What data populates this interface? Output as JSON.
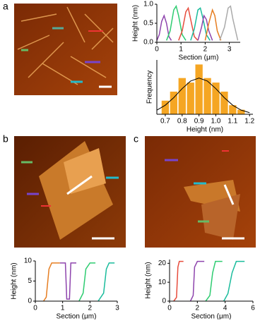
{
  "panels": [
    "a",
    "b",
    "c"
  ],
  "chart_data": [
    {
      "type": "line",
      "xlabel": "Section (μm)",
      "ylabel": "Height (nm)",
      "xlim": [
        0,
        3.45
      ],
      "xticks": [
        0,
        1,
        2,
        3
      ],
      "ylim": [
        0,
        1
      ],
      "yticks": [
        {
          "value": 0,
          "label": "0.0"
        },
        0.5,
        {
          "value": 1,
          "label": "1.0"
        }
      ],
      "series": [
        {
          "color": "#8e44ad",
          "x": [
            0,
            0.1,
            0.2,
            0.3,
            0.4,
            0.5,
            0.6
          ],
          "values": [
            0.05,
            0.2,
            0.55,
            0.7,
            0.5,
            0.15,
            0.05
          ]
        },
        {
          "color": "#2ecc71",
          "x": [
            0.4,
            0.55,
            0.7,
            0.8,
            0.9,
            1.05,
            1.2
          ],
          "values": [
            0.05,
            0.3,
            0.85,
            0.95,
            0.7,
            0.2,
            0.05
          ]
        },
        {
          "color": "#e74c3c",
          "x": [
            0.9,
            1.05,
            1.2,
            1.3,
            1.4,
            1.55,
            1.7
          ],
          "values": [
            0.05,
            0.3,
            0.8,
            0.9,
            0.6,
            0.15,
            0.05
          ]
        },
        {
          "color": "#1abc9c",
          "x": [
            1.4,
            1.55,
            1.7,
            1.8,
            1.9,
            2.05,
            2.2
          ],
          "values": [
            0.05,
            0.35,
            0.85,
            0.9,
            0.65,
            0.2,
            0.05
          ]
        },
        {
          "color": "#8e44ad",
          "x": [
            1.7,
            1.85,
            1.95,
            2.05,
            2.15,
            2.3
          ],
          "values": [
            0.05,
            0.4,
            0.7,
            0.6,
            0.3,
            0.05
          ]
        },
        {
          "color": "#e67e22",
          "x": [
            2.0,
            2.15,
            2.3,
            2.4,
            2.5,
            2.65
          ],
          "values": [
            0.05,
            0.5,
            0.85,
            0.7,
            0.3,
            0.05
          ]
        },
        {
          "color": "#aaaaaa",
          "x": [
            2.6,
            2.8,
            2.95,
            3.05,
            3.15,
            3.35
          ],
          "values": [
            0.05,
            0.4,
            0.9,
            0.95,
            0.6,
            0.05
          ]
        }
      ]
    },
    {
      "type": "histogram",
      "xlabel": "Height (nm)",
      "ylabel": "Frequency",
      "color": "#f5a623",
      "xlim": [
        0.65,
        1.22
      ],
      "xticks": [
        0.7,
        0.8,
        0.9,
        {
          "value": 1,
          "label": "1.0"
        },
        1.1,
        1.2
      ],
      "ylim": [
        0,
        12
      ],
      "bins": [
        0.675,
        0.725,
        0.775,
        0.825,
        0.875,
        0.925,
        0.975,
        1.025,
        1.075,
        1.125,
        1.175
      ],
      "values": [
        3,
        5,
        8,
        7,
        11,
        8,
        7,
        5,
        2,
        1
      ],
      "fit": {
        "color": "#000000",
        "x": [
          0.65,
          0.7,
          0.75,
          0.8,
          0.85,
          0.9,
          0.95,
          1.0,
          1.05,
          1.1,
          1.15,
          1.2
        ],
        "values": [
          0.91,
          2.0,
          3.66,
          5.66,
          7.33,
          8,
          7.33,
          5.66,
          3.66,
          2.0,
          0.91,
          0.35
        ]
      }
    },
    {
      "type": "line",
      "xlabel": "Section (μm)",
      "ylabel": "Height (nm)",
      "xlim": [
        0,
        3
      ],
      "xticks": [
        0,
        1,
        2,
        3
      ],
      "ylim": [
        0,
        10
      ],
      "yticks": [
        0,
        5,
        10
      ],
      "series": [
        {
          "color": "#e67e22",
          "x": [
            0.3,
            0.4,
            0.5,
            0.6,
            0.9
          ],
          "values": [
            0,
            1,
            8,
            9.5,
            9.5
          ]
        },
        {
          "color": "#8e44ad",
          "x": [
            0.9,
            1.1,
            1.15,
            1.25,
            1.3,
            1.5
          ],
          "values": [
            9.5,
            9.5,
            0.5,
            0.5,
            9.5,
            9.5
          ]
        },
        {
          "color": "#2ecc71",
          "x": [
            1.6,
            1.75,
            1.85,
            2.0,
            2.2
          ],
          "values": [
            0,
            2,
            8,
            9.5,
            9.5
          ]
        },
        {
          "color": "#1abc9c",
          "x": [
            2.3,
            2.5,
            2.6,
            2.7,
            2.9
          ],
          "values": [
            0,
            2,
            8,
            9.5,
            9.5
          ]
        }
      ]
    },
    {
      "type": "line",
      "xlabel": "Section (μm)",
      "ylabel": "Height (nm)",
      "xlim": [
        0,
        6
      ],
      "xticks": [
        0,
        2,
        4,
        6
      ],
      "ylim": [
        0,
        22
      ],
      "yticks": [
        0,
        10,
        20
      ],
      "series": [
        {
          "color": "#e74c3c",
          "x": [
            0.3,
            0.5,
            0.6,
            0.7,
            1.0
          ],
          "values": [
            0,
            2,
            18,
            21,
            21
          ]
        },
        {
          "color": "#8e44ad",
          "x": [
            1.5,
            1.7,
            1.8,
            2.0,
            2.5
          ],
          "values": [
            0,
            3,
            18,
            21,
            21
          ]
        },
        {
          "color": "#2ecc71",
          "x": [
            2.6,
            2.9,
            3.1,
            3.3,
            3.8
          ],
          "values": [
            0,
            3,
            15,
            21,
            21
          ]
        },
        {
          "color": "#1abc9c",
          "x": [
            3.9,
            4.2,
            4.5,
            4.8,
            5.4
          ],
          "values": [
            0,
            4,
            15,
            21,
            21
          ]
        }
      ]
    }
  ]
}
